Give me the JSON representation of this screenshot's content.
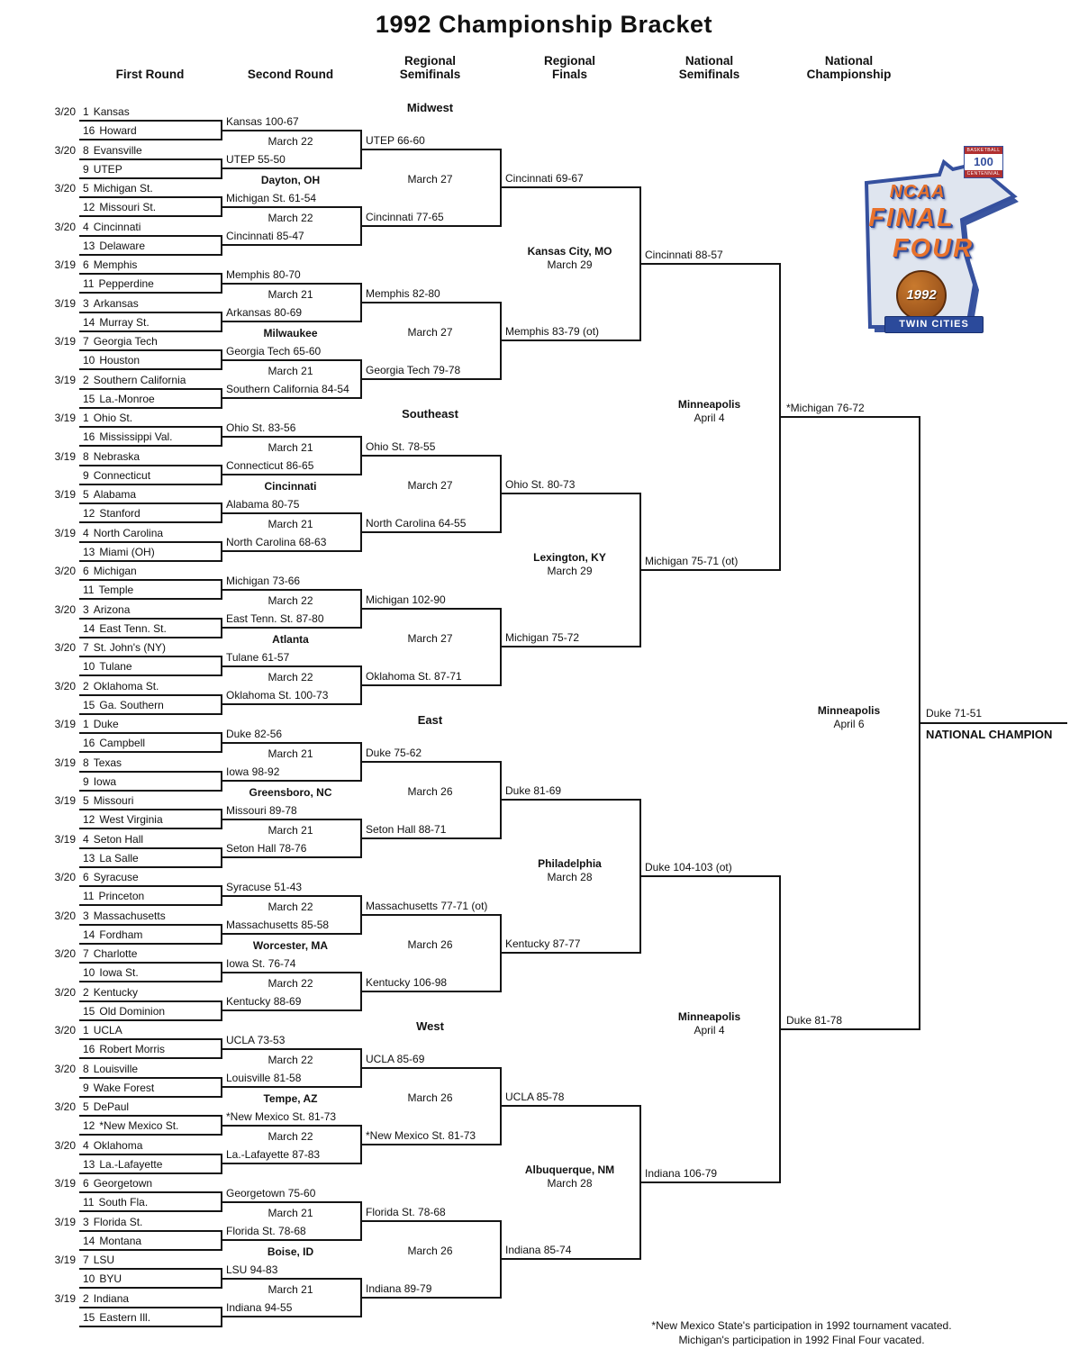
{
  "title": "1992 Championship Bracket",
  "column_headers": [
    "First Round",
    "Second Round",
    "Regional\nSemifinals",
    "Regional\nFinals",
    "National\nSemifinals",
    "National\nChampionship"
  ],
  "colors": {
    "line": "#141414",
    "logo_blue": "#35509e",
    "logo_orange": "#e8722c",
    "ball_brown": "#8a4514",
    "banner_blue": "#2b4a9b"
  },
  "regions": [
    {
      "name": "Midwest",
      "first_round_games": [
        {
          "date": "3/20",
          "top_seed": "1",
          "top_team": "Kansas",
          "bottom_seed": "16",
          "bottom_team": "Howard",
          "result": "Kansas 100-67"
        },
        {
          "date": "3/20",
          "top_seed": "8",
          "top_team": "Evansville",
          "bottom_seed": "9",
          "bottom_team": "UTEP",
          "result": "UTEP 55-50"
        },
        {
          "date": "3/20",
          "top_seed": "5",
          "top_team": "Michigan St.",
          "bottom_seed": "12",
          "bottom_team": "Missouri St.",
          "result": "Michigan St. 61-54"
        },
        {
          "date": "3/20",
          "top_seed": "4",
          "top_team": "Cincinnati",
          "bottom_seed": "13",
          "bottom_team": "Delaware",
          "result": "Cincinnati 85-47"
        },
        {
          "date": "3/19",
          "top_seed": "6",
          "top_team": "Memphis",
          "bottom_seed": "11",
          "bottom_team": "Pepperdine",
          "result": "Memphis 80-70"
        },
        {
          "date": "3/19",
          "top_seed": "3",
          "top_team": "Arkansas",
          "bottom_seed": "14",
          "bottom_team": "Murray St.",
          "result": "Arkansas 80-69"
        },
        {
          "date": "3/19",
          "top_seed": "7",
          "top_team": "Georgia Tech",
          "bottom_seed": "10",
          "bottom_team": "Houston",
          "result": "Georgia Tech 65-60"
        },
        {
          "date": "3/19",
          "top_seed": "2",
          "top_team": "Southern California",
          "bottom_seed": "15",
          "bottom_team": "La.-Monroe",
          "result": "Southern California 84-54"
        }
      ],
      "second_round_games": [
        {
          "date": "March 22",
          "result": "UTEP 66-60"
        },
        {
          "date": "March 22",
          "result": "Cincinnati 77-65"
        },
        {
          "date": "March 21",
          "result": "Memphis 82-80"
        },
        {
          "date": "March 21",
          "result": "Georgia Tech 79-78"
        }
      ],
      "sites": [
        "Dayton, OH",
        "Milwaukee"
      ],
      "regional_semifinal_games": [
        {
          "date": "March 27",
          "result": "Cincinnati 69-67"
        },
        {
          "date": "March 27",
          "result": "Memphis 83-79 (ot)"
        }
      ],
      "regional_final": {
        "site": "Kansas City, MO",
        "date": "March 29",
        "result": "Cincinnati 88-57"
      }
    },
    {
      "name": "Southeast",
      "first_round_games": [
        {
          "date": "3/19",
          "top_seed": "1",
          "top_team": "Ohio St.",
          "bottom_seed": "16",
          "bottom_team": "Mississippi Val.",
          "result": "Ohio St. 83-56"
        },
        {
          "date": "3/19",
          "top_seed": "8",
          "top_team": "Nebraska",
          "bottom_seed": "9",
          "bottom_team": "Connecticut",
          "result": "Connecticut 86-65"
        },
        {
          "date": "3/19",
          "top_seed": "5",
          "top_team": "Alabama",
          "bottom_seed": "12",
          "bottom_team": "Stanford",
          "result": "Alabama 80-75"
        },
        {
          "date": "3/19",
          "top_seed": "4",
          "top_team": "North Carolina",
          "bottom_seed": "13",
          "bottom_team": "Miami (OH)",
          "result": "North Carolina 68-63"
        },
        {
          "date": "3/20",
          "top_seed": "6",
          "top_team": "Michigan",
          "bottom_seed": "11",
          "bottom_team": "Temple",
          "result": "Michigan 73-66"
        },
        {
          "date": "3/20",
          "top_seed": "3",
          "top_team": "Arizona",
          "bottom_seed": "14",
          "bottom_team": "East Tenn. St.",
          "result": "East Tenn. St. 87-80"
        },
        {
          "date": "3/20",
          "top_seed": "7",
          "top_team": "St. John's (NY)",
          "bottom_seed": "10",
          "bottom_team": "Tulane",
          "result": "Tulane 61-57"
        },
        {
          "date": "3/20",
          "top_seed": "2",
          "top_team": "Oklahoma St.",
          "bottom_seed": "15",
          "bottom_team": "Ga. Southern",
          "result": "Oklahoma St. 100-73"
        }
      ],
      "second_round_games": [
        {
          "date": "March 21",
          "result": "Ohio St. 78-55"
        },
        {
          "date": "March 21",
          "result": "North Carolina 64-55"
        },
        {
          "date": "March 22",
          "result": "Michigan 102-90"
        },
        {
          "date": "March 22",
          "result": "Oklahoma St. 87-71"
        }
      ],
      "sites": [
        "Cincinnati",
        "Atlanta"
      ],
      "regional_semifinal_games": [
        {
          "date": "March 27",
          "result": "Ohio St. 80-73"
        },
        {
          "date": "March 27",
          "result": "Michigan 75-72"
        }
      ],
      "regional_final": {
        "site": "Lexington, KY",
        "date": "March 29",
        "result": "Michigan 75-71 (ot)"
      }
    },
    {
      "name": "East",
      "first_round_games": [
        {
          "date": "3/19",
          "top_seed": "1",
          "top_team": "Duke",
          "bottom_seed": "16",
          "bottom_team": "Campbell",
          "result": "Duke 82-56"
        },
        {
          "date": "3/19",
          "top_seed": "8",
          "top_team": "Texas",
          "bottom_seed": "9",
          "bottom_team": "Iowa",
          "result": "Iowa 98-92"
        },
        {
          "date": "3/19",
          "top_seed": "5",
          "top_team": "Missouri",
          "bottom_seed": "12",
          "bottom_team": "West Virginia",
          "result": "Missouri 89-78"
        },
        {
          "date": "3/19",
          "top_seed": "4",
          "top_team": "Seton Hall",
          "bottom_seed": "13",
          "bottom_team": "La Salle",
          "result": "Seton Hall 78-76"
        },
        {
          "date": "3/20",
          "top_seed": "6",
          "top_team": "Syracuse",
          "bottom_seed": "11",
          "bottom_team": "Princeton",
          "result": "Syracuse 51-43"
        },
        {
          "date": "3/20",
          "top_seed": "3",
          "top_team": "Massachusetts",
          "bottom_seed": "14",
          "bottom_team": "Fordham",
          "result": "Massachusetts 85-58"
        },
        {
          "date": "3/20",
          "top_seed": "7",
          "top_team": "Charlotte",
          "bottom_seed": "10",
          "bottom_team": "Iowa St.",
          "result": "Iowa St. 76-74"
        },
        {
          "date": "3/20",
          "top_seed": "2",
          "top_team": "Kentucky",
          "bottom_seed": "15",
          "bottom_team": "Old Dominion",
          "result": "Kentucky 88-69"
        }
      ],
      "second_round_games": [
        {
          "date": "March 21",
          "result": "Duke 75-62"
        },
        {
          "date": "March 21",
          "result": "Seton Hall 88-71"
        },
        {
          "date": "March 22",
          "result": "Massachusetts 77-71 (ot)"
        },
        {
          "date": "March 22",
          "result": "Kentucky 106-98"
        }
      ],
      "sites": [
        "Greensboro, NC",
        "Worcester, MA"
      ],
      "regional_semifinal_games": [
        {
          "date": "March 26",
          "result": "Duke 81-69"
        },
        {
          "date": "March 26",
          "result": "Kentucky 87-77"
        }
      ],
      "regional_final": {
        "site": "Philadelphia",
        "date": "March 28",
        "result": "Duke 104-103 (ot)"
      }
    },
    {
      "name": "West",
      "first_round_games": [
        {
          "date": "3/20",
          "top_seed": "1",
          "top_team": "UCLA",
          "bottom_seed": "16",
          "bottom_team": "Robert Morris",
          "result": "UCLA 73-53"
        },
        {
          "date": "3/20",
          "top_seed": "8",
          "top_team": "Louisville",
          "bottom_seed": "9",
          "bottom_team": "Wake Forest",
          "result": "Louisville 81-58"
        },
        {
          "date": "3/20",
          "top_seed": "5",
          "top_team": "DePaul",
          "bottom_seed": "12",
          "bottom_team": "*New Mexico St.",
          "result": "*New Mexico St. 81-73"
        },
        {
          "date": "3/20",
          "top_seed": "4",
          "top_team": "Oklahoma",
          "bottom_seed": "13",
          "bottom_team": "La.-Lafayette",
          "result": "La.-Lafayette 87-83"
        },
        {
          "date": "3/19",
          "top_seed": "6",
          "top_team": "Georgetown",
          "bottom_seed": "11",
          "bottom_team": "South Fla.",
          "result": "Georgetown 75-60"
        },
        {
          "date": "3/19",
          "top_seed": "3",
          "top_team": "Florida St.",
          "bottom_seed": "14",
          "bottom_team": "Montana",
          "result": "Florida St. 78-68"
        },
        {
          "date": "3/19",
          "top_seed": "7",
          "top_team": "LSU",
          "bottom_seed": "10",
          "bottom_team": "BYU",
          "result": "LSU 94-83"
        },
        {
          "date": "3/19",
          "top_seed": "2",
          "top_team": "Indiana",
          "bottom_seed": "15",
          "bottom_team": "Eastern Ill.",
          "result": "Indiana 94-55"
        }
      ],
      "second_round_games": [
        {
          "date": "March 22",
          "result": "UCLA 85-69"
        },
        {
          "date": "March 22",
          "result": "*New Mexico St. 81-73"
        },
        {
          "date": "March 21",
          "result": "Florida St. 78-68"
        },
        {
          "date": "March 21",
          "result": "Indiana 89-79"
        }
      ],
      "sites": [
        "Tempe, AZ",
        "Boise, ID"
      ],
      "regional_semifinal_games": [
        {
          "date": "March 26",
          "result": "UCLA 85-78"
        },
        {
          "date": "March 26",
          "result": "Indiana 85-74"
        }
      ],
      "regional_final": {
        "site": "Albuquerque, NM",
        "date": "March 28",
        "result": "Indiana 106-79"
      }
    }
  ],
  "national_semifinals": [
    {
      "site": "Minneapolis",
      "date": "April 4",
      "result": "*Michigan 76-72"
    },
    {
      "site": "Minneapolis",
      "date": "April 4",
      "result": "Duke 81-78"
    }
  ],
  "championship": {
    "site": "Minneapolis",
    "date": "April 6",
    "result": "Duke 71-51",
    "champion_label": "NATIONAL CHAMPION"
  },
  "footnotes": [
    "*New Mexico State's participation in 1992 tournament vacated.",
    "Michigan's participation in 1992 Final Four vacated."
  ],
  "logo": {
    "ncaa": "NCAA",
    "final": "FINAL",
    "four": "FOUR",
    "year": "1992",
    "city": "TWIN CITIES",
    "badge_top": "BASKETBALL",
    "badge_center": "100",
    "badge_bottom": "CENTENNIAL"
  }
}
